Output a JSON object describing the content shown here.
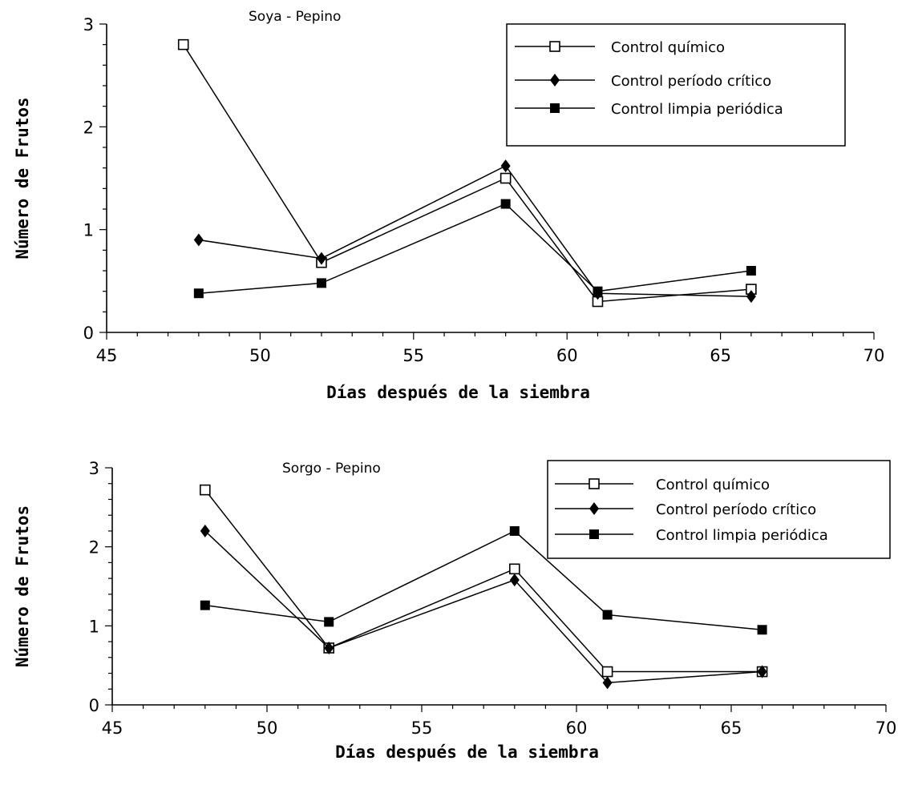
{
  "chart_data": [
    {
      "type": "line",
      "title": "Soya - Pepino",
      "xlabel": "Días después de la siembra",
      "ylabel": "Número de Frutos",
      "xlim": [
        45,
        70
      ],
      "ylim": [
        0,
        3
      ],
      "xticks": [
        "45",
        "50",
        "55",
        "60",
        "65",
        "70"
      ],
      "yticks": [
        "0",
        "1",
        "2",
        "3"
      ],
      "legend": "top-right",
      "series": [
        {
          "name": "Control químico",
          "marker": "open-square",
          "x": [
            47.5,
            52,
            58,
            61,
            66
          ],
          "y": [
            2.8,
            0.68,
            1.5,
            0.3,
            0.42
          ]
        },
        {
          "name": "Control período crítico",
          "marker": "diamond",
          "x": [
            48,
            52,
            58,
            61,
            66
          ],
          "y": [
            0.9,
            0.72,
            1.62,
            0.38,
            0.35
          ]
        },
        {
          "name": "Control limpia periódica",
          "marker": "filled-square",
          "x": [
            48,
            52,
            58,
            61,
            66
          ],
          "y": [
            0.38,
            0.48,
            1.25,
            0.4,
            0.6
          ]
        }
      ]
    },
    {
      "type": "line",
      "title": "Sorgo - Pepino",
      "xlabel": "Días después de la siembra",
      "ylabel": "Número de Frutos",
      "xlim": [
        45,
        70
      ],
      "ylim": [
        0,
        3
      ],
      "xticks": [
        "45",
        "50",
        "55",
        "60",
        "65",
        "70"
      ],
      "yticks": [
        "0",
        "1",
        "2",
        "3"
      ],
      "legend": "top-right",
      "series": [
        {
          "name": "Control químico",
          "marker": "open-square",
          "x": [
            48,
            52,
            58,
            61,
            66
          ],
          "y": [
            2.72,
            0.72,
            1.72,
            0.42,
            0.42
          ]
        },
        {
          "name": "Control período crítico",
          "marker": "diamond",
          "x": [
            48,
            52,
            58,
            61,
            66
          ],
          "y": [
            2.2,
            0.72,
            1.58,
            0.28,
            0.42
          ]
        },
        {
          "name": "Control limpia periódica",
          "marker": "filled-square",
          "x": [
            48,
            52,
            58,
            61,
            66
          ],
          "y": [
            1.26,
            1.05,
            2.2,
            1.14,
            0.95
          ]
        }
      ]
    }
  ]
}
